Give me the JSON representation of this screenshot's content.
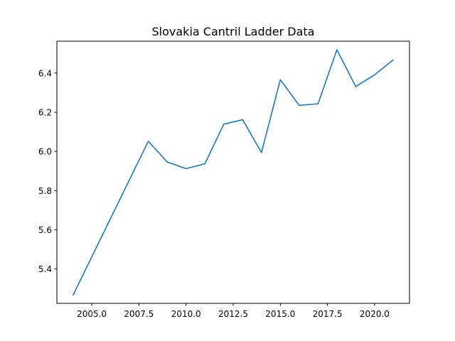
{
  "chart_data": {
    "type": "line",
    "title": "Slovakia Cantril Ladder Data",
    "xlabel": "",
    "ylabel": "",
    "xlim": [
      2003.15,
      2021.85
    ],
    "ylim": [
      5.2245,
      6.5625
    ],
    "x_ticks": [
      2005.0,
      2007.5,
      2010.0,
      2012.5,
      2015.0,
      2017.5,
      2020.0
    ],
    "x_tick_labels": [
      "2005.0",
      "2007.5",
      "2010.0",
      "2012.5",
      "2015.0",
      "2017.5",
      "2020.0"
    ],
    "y_ticks": [
      5.4,
      5.6,
      5.8,
      6.0,
      6.2,
      6.4
    ],
    "y_tick_labels": [
      "5.4",
      "5.6",
      "5.8",
      "6.0",
      "6.2",
      "6.4"
    ],
    "grid": false,
    "legend": "none",
    "series": [
      {
        "color": "#1f77b4",
        "x": [
          2004,
          2008,
          2009,
          2010,
          2011,
          2012,
          2013,
          2014,
          2015,
          2016,
          2017,
          2018,
          2019,
          2020,
          2021
        ],
        "y": [
          5.265,
          6.052,
          5.946,
          5.912,
          5.937,
          6.139,
          6.162,
          5.994,
          6.366,
          6.235,
          6.243,
          6.519,
          6.331,
          6.391,
          6.468
        ]
      }
    ]
  }
}
